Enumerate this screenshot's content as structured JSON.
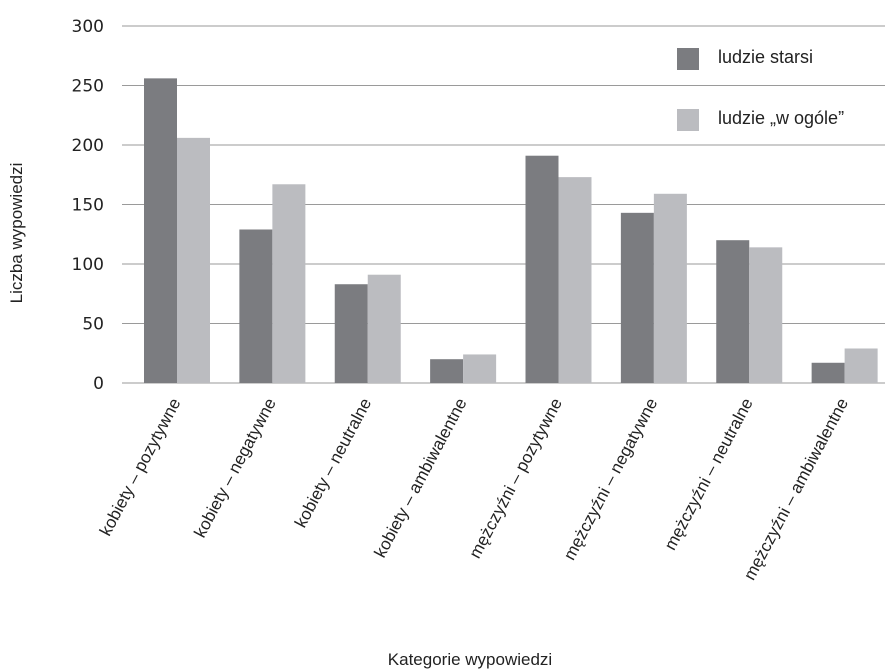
{
  "chart_data": {
    "type": "bar",
    "categories": [
      "kobiety – pozytywne",
      "kobiety – negatywne",
      "kobiety – neutralne",
      "kobiety – ambiwalentne",
      "mężczyźni – pozytywne",
      "mężczyźni – negatywne",
      "mężczyźni – neutralne",
      "mężczyźni – ambiwalentne"
    ],
    "series": [
      {
        "name": "ludzie starsi",
        "color": "#7b7c80",
        "values": [
          256,
          129,
          83,
          20,
          191,
          143,
          120,
          17
        ]
      },
      {
        "name": "ludzie „w ogóle”",
        "color": "#bbbcc0",
        "values": [
          206,
          167,
          91,
          24,
          173,
          159,
          114,
          29
        ]
      }
    ],
    "title": "",
    "xlabel": "Kategorie wypowiedzi",
    "ylabel": "Liczba wypowiedzi",
    "ylim": [
      0,
      300
    ],
    "yticks": [
      0,
      50,
      100,
      150,
      200,
      250,
      300
    ],
    "grid": true,
    "legend_position": "top-right"
  }
}
